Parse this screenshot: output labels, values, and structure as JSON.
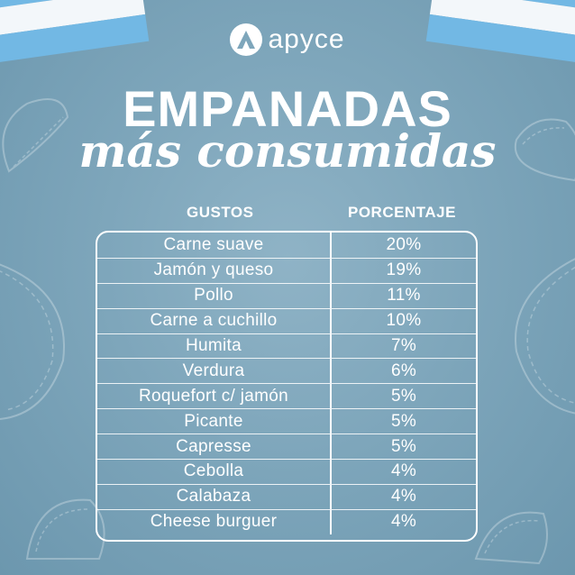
{
  "brand": {
    "name": "apyce"
  },
  "header": {
    "title": "EMPANADAS",
    "subtitle": "más consumidas"
  },
  "table": {
    "headers": [
      "GUSTOS",
      "PORCENTAJE"
    ],
    "rows": [
      {
        "flavor": "Carne suave",
        "percent": "20%"
      },
      {
        "flavor": "Jamón y queso",
        "percent": "19%"
      },
      {
        "flavor": "Pollo",
        "percent": "11%"
      },
      {
        "flavor": "Carne a cuchillo",
        "percent": "10%"
      },
      {
        "flavor": "Humita",
        "percent": "7%"
      },
      {
        "flavor": "Verdura",
        "percent": "6%"
      },
      {
        "flavor": "Roquefort c/ jamón",
        "percent": "5%"
      },
      {
        "flavor": "Picante",
        "percent": "5%"
      },
      {
        "flavor": "Capresse",
        "percent": "5%"
      },
      {
        "flavor": "Cebolla",
        "percent": "4%"
      },
      {
        "flavor": "Calabaza",
        "percent": "4%"
      },
      {
        "flavor": "Cheese burguer",
        "percent": "4%"
      }
    ]
  },
  "colors": {
    "background": "#7ea6bb",
    "flag_blue": "#72b8e4",
    "flag_white": "#f3f7fa",
    "text": "#ffffff"
  },
  "icons": [
    "apyce-logo-icon",
    "argentina-flag",
    "empanada-illustration"
  ]
}
